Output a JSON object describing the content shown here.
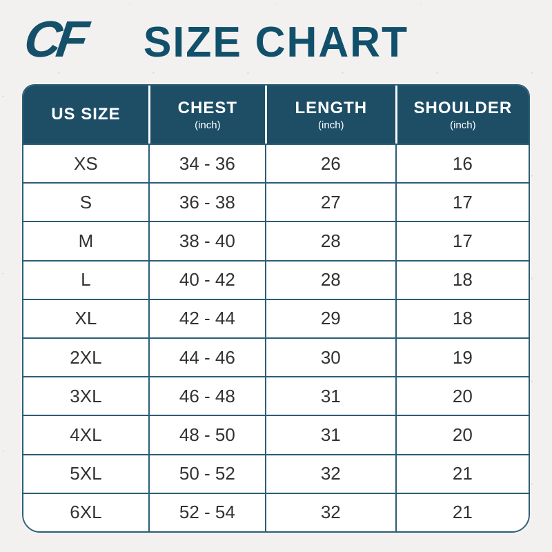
{
  "page": {
    "background_color": "#f2f1ef",
    "accent_color": "#1d4e66",
    "grid_line_color": "#2b5d76",
    "logo_text": "CF",
    "title": "SIZE CHART"
  },
  "table": {
    "columns": [
      {
        "label": "US SIZE",
        "sub": ""
      },
      {
        "label": "CHEST",
        "sub": "(inch)"
      },
      {
        "label": "LENGTH",
        "sub": "(inch)"
      },
      {
        "label": "SHOULDER",
        "sub": "(inch)"
      }
    ],
    "rows": [
      [
        "XS",
        "34 - 36",
        "26",
        "16"
      ],
      [
        "S",
        "36 - 38",
        "27",
        "17"
      ],
      [
        "M",
        "38 - 40",
        "28",
        "17"
      ],
      [
        "L",
        "40 - 42",
        "28",
        "18"
      ],
      [
        "XL",
        "42 - 44",
        "29",
        "18"
      ],
      [
        "2XL",
        "44 - 46",
        "30",
        "19"
      ],
      [
        "3XL",
        "46 - 48",
        "31",
        "20"
      ],
      [
        "4XL",
        "48 - 50",
        "31",
        "20"
      ],
      [
        "5XL",
        "50 - 52",
        "32",
        "21"
      ],
      [
        "6XL",
        "52 - 54",
        "32",
        "21"
      ]
    ]
  },
  "chart_data": {
    "type": "table",
    "title": "SIZE CHART",
    "columns": [
      "US SIZE",
      "CHEST (inch)",
      "LENGTH (inch)",
      "SHOULDER (inch)"
    ],
    "rows": [
      [
        "XS",
        "34 - 36",
        26,
        16
      ],
      [
        "S",
        "36 - 38",
        27,
        17
      ],
      [
        "M",
        "38 - 40",
        28,
        17
      ],
      [
        "L",
        "40 - 42",
        28,
        18
      ],
      [
        "XL",
        "42 - 44",
        29,
        18
      ],
      [
        "2XL",
        "44 - 46",
        30,
        19
      ],
      [
        "3XL",
        "46 - 48",
        31,
        20
      ],
      [
        "4XL",
        "48 - 50",
        31,
        20
      ],
      [
        "5XL",
        "50 - 52",
        32,
        21
      ],
      [
        "6XL",
        "52 - 54",
        32,
        21
      ]
    ]
  }
}
